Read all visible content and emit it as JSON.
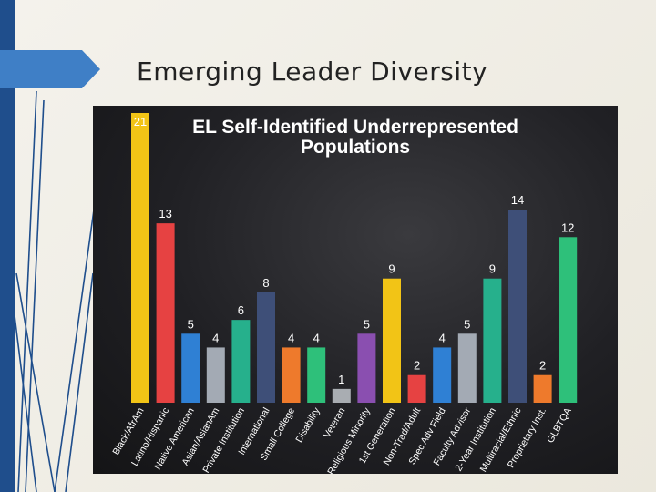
{
  "slide": {
    "title": "Emerging Leader Diversity"
  },
  "colors": {
    "left_bar": "#1f4e8c",
    "tab": "#3f7fc6",
    "chart_bg": "#202024",
    "text_light": "#ffffff"
  },
  "chart_data": {
    "type": "bar",
    "title": "EL Self-Identified Underrepresented Populations",
    "title_lines": [
      "EL Self-Identified Underrepresented",
      "Populations"
    ],
    "categories": [
      "Black/AfrAm",
      "Latino/Hispanic",
      "Native American",
      "Asian/AsianAm",
      "Private Institution",
      "International",
      "Small College",
      "Disability",
      "Veteran",
      "Religious Minority",
      "1st Generation",
      "Non-Trad/Adult",
      "Spec Adv Field",
      "Faculty Advisor",
      "2-Year Institution",
      "Multiracial/Ethnic",
      "Proprietary Inst.",
      "GLBTQA"
    ],
    "values": [
      21,
      13,
      5,
      4,
      6,
      8,
      4,
      4,
      1,
      5,
      9,
      2,
      4,
      5,
      9,
      14,
      2,
      12
    ],
    "bar_colors": [
      "#f2c416",
      "#e64242",
      "#2f80d4",
      "#a3aab4",
      "#26b08c",
      "#3e4f78",
      "#ee7a2c",
      "#2ec07a",
      "#a9adb2",
      "#8a4fb0",
      "#f2c416",
      "#e64242",
      "#2f80d4",
      "#a3aab4",
      "#26b08c",
      "#3e4f78",
      "#ee7a2c",
      "#2ec07a"
    ],
    "xlabel": "",
    "ylabel": "",
    "ylim": [
      0,
      21
    ]
  }
}
